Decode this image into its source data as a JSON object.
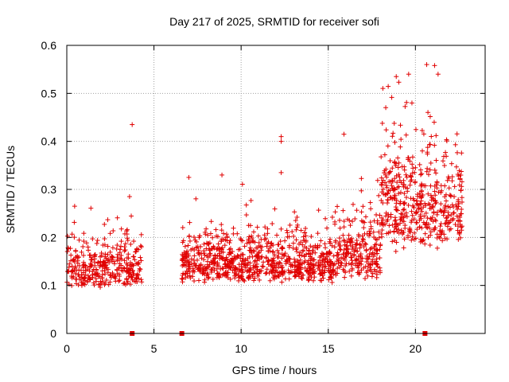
{
  "chart_data": {
    "type": "scatter",
    "title": "Day 217 of 2025, SRMTID for receiver sofi",
    "xlabel": "GPS time / hours",
    "ylabel": "SRMTID / TECUs",
    "xlim": [
      0,
      24
    ],
    "ylim": [
      0,
      0.6
    ],
    "xticks": [
      0,
      5,
      10,
      15,
      20
    ],
    "yticks": [
      0,
      0.1,
      0.2,
      0.3,
      0.4,
      0.5,
      0.6
    ],
    "xtick_labels": [
      "0",
      "5",
      "10",
      "15",
      "20"
    ],
    "ytick_labels": [
      "0",
      "0.1",
      "0.2",
      "0.3",
      "0.4",
      "0.5",
      "0.6"
    ],
    "grid": true,
    "marker": "+",
    "color": "#e00000",
    "gap_markers_x": [
      3.75,
      6.6,
      20.55
    ],
    "series": [
      {
        "name": "SRMTID",
        "segments": [
          {
            "x_start": 0.0,
            "x_end": 4.3,
            "y_low": 0.03,
            "y_high": 0.29,
            "base": 0.115,
            "spread": 0.045,
            "count": 330
          },
          {
            "x_start": 6.6,
            "x_end": 15.3,
            "y_low": 0.02,
            "y_high": 0.33,
            "base": 0.125,
            "spread": 0.045,
            "count": 800
          },
          {
            "x_start": 15.3,
            "x_end": 18.0,
            "y_low": 0.04,
            "y_high": 0.42,
            "base": 0.14,
            "spread": 0.055,
            "count": 240
          },
          {
            "x_start": 18.0,
            "x_end": 20.0,
            "y_low": 0.06,
            "y_high": 0.54,
            "base": 0.22,
            "spread": 0.1,
            "count": 220
          },
          {
            "x_start": 20.0,
            "x_end": 22.7,
            "y_low": 0.07,
            "y_high": 0.56,
            "base": 0.22,
            "spread": 0.09,
            "count": 260
          }
        ],
        "notable_points": [
          {
            "x": 3.75,
            "y": 0.435
          },
          {
            "x": 12.3,
            "y": 0.41
          },
          {
            "x": 12.3,
            "y": 0.4
          },
          {
            "x": 12.3,
            "y": 0.335
          },
          {
            "x": 15.9,
            "y": 0.415
          },
          {
            "x": 21.1,
            "y": 0.558
          },
          {
            "x": 18.9,
            "y": 0.535
          },
          {
            "x": 21.3,
            "y": 0.54
          },
          {
            "x": 19.8,
            "y": 0.48
          },
          {
            "x": 0.45,
            "y": 0.265
          },
          {
            "x": 3.6,
            "y": 0.285
          },
          {
            "x": 7.0,
            "y": 0.325
          },
          {
            "x": 8.9,
            "y": 0.33
          }
        ]
      }
    ]
  }
}
